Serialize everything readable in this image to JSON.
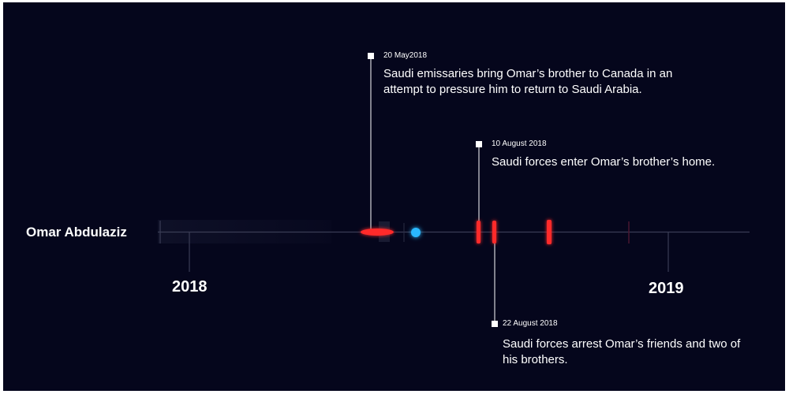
{
  "timeline": {
    "subject": "Omar Abdulaziz",
    "years": [
      "2018",
      "2019"
    ]
  },
  "events": [
    {
      "date": "20 May2018",
      "description": "Saudi emissaries bring Omar’s brother to Canada in an attempt to pressure him to return to Saudi Arabia."
    },
    {
      "date": "10 August 2018",
      "description": "Saudi forces enter Omar’s brother’s home."
    },
    {
      "date": "22 August 2018",
      "description": "Saudi forces arrest Omar’s friends and two of his brothers."
    }
  ],
  "colors": {
    "background": "#05061c",
    "axis": "#3a3d55",
    "event_marker": "#ff2a2a",
    "current_marker": "#2ab8ff",
    "connector": "#ffffff"
  }
}
